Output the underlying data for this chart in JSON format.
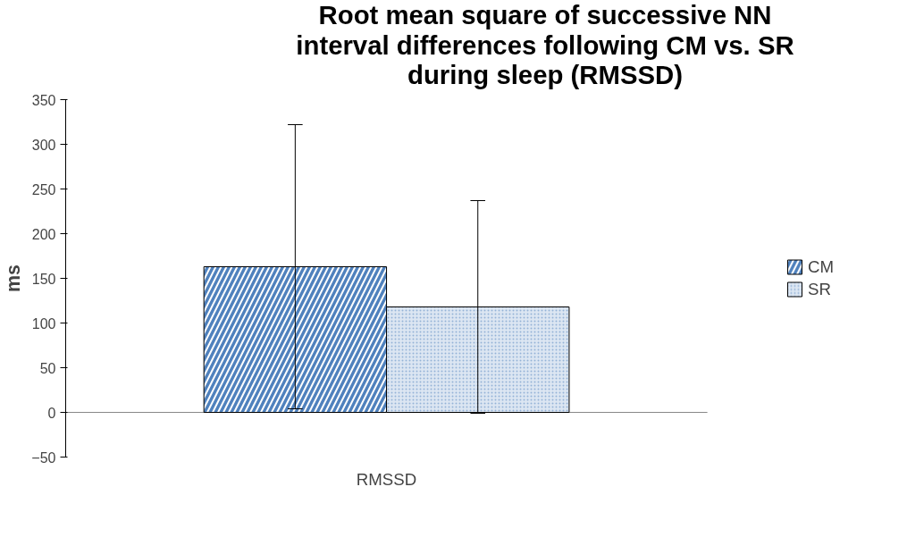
{
  "chart_data": {
    "type": "bar",
    "title": "Root mean square of successive NN interval differences following CM vs. SR during sleep (RMSSD)",
    "ylabel": "ms",
    "categories": [
      "RMSSD"
    ],
    "series": [
      {
        "name": "CM",
        "color": "#4f81bd",
        "values": [
          163
        ],
        "errors": [
          159
        ]
      },
      {
        "name": "SR",
        "color": "#dce6f2",
        "values": [
          118
        ],
        "errors": [
          119
        ]
      }
    ],
    "ylim": [
      -50,
      350
    ],
    "yticks": [
      -50,
      0,
      50,
      100,
      150,
      200,
      250,
      300,
      350
    ],
    "legend": "right"
  }
}
